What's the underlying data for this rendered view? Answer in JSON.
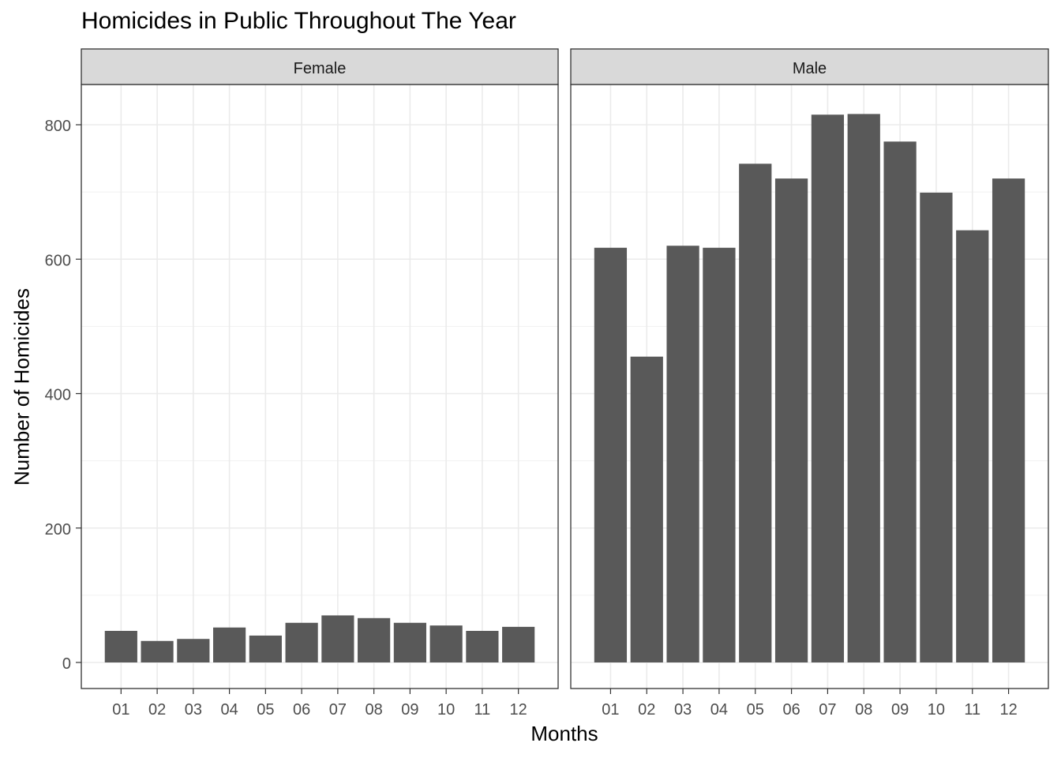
{
  "chart_data": {
    "type": "bar",
    "title": "Homicides in Public Throughout The Year",
    "xlabel": "Months",
    "ylabel": "Number of Homicides",
    "ylim": [
      0,
      880
    ],
    "yticks": [
      0,
      200,
      400,
      600,
      800
    ],
    "grid": true,
    "categories": [
      "01",
      "02",
      "03",
      "04",
      "05",
      "06",
      "07",
      "08",
      "09",
      "10",
      "11",
      "12"
    ],
    "bar_color": "#595959",
    "strip_color": "#d9d9d9",
    "panels": [
      {
        "name": "Female",
        "values": [
          47,
          32,
          35,
          52,
          40,
          59,
          70,
          66,
          59,
          55,
          47,
          53
        ]
      },
      {
        "name": "Male",
        "values": [
          617,
          455,
          620,
          617,
          742,
          720,
          815,
          816,
          775,
          699,
          643,
          720
        ]
      }
    ]
  }
}
